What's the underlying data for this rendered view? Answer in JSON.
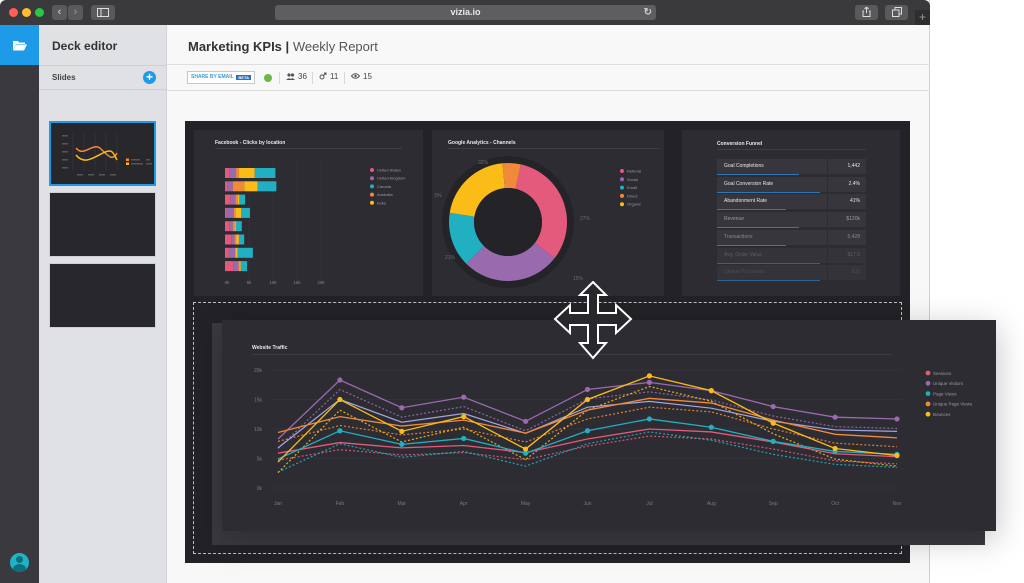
{
  "browser": {
    "url": "vizia.io",
    "traffic_lights": [
      "#ff5f57",
      "#febc2e",
      "#28c840"
    ]
  },
  "sidebar": {
    "app_title": "Deck editor",
    "section_label": "Slides",
    "add_icon": "plus-icon",
    "slides": [
      {
        "active": true
      },
      {
        "active": false
      },
      {
        "active": false
      }
    ]
  },
  "header": {
    "title": "Marketing KPIs",
    "separator": "|",
    "subtitle": "Weekly Report"
  },
  "toolbar": {
    "share_label": "SHARE BY EMAIL",
    "share_badge": "BETA",
    "status_color": "#6ab74a",
    "stats": [
      {
        "icon": "users-icon",
        "value": "36"
      },
      {
        "icon": "branch-icon",
        "value": "11"
      },
      {
        "icon": "eye-icon",
        "value": "15"
      }
    ]
  },
  "colors": {
    "pink": "#e45a7d",
    "purple": "#9a6aae",
    "teal": "#21b0c1",
    "orange": "#f08a3a",
    "yellow": "#fbbc17",
    "lavender": "#a0a6e0",
    "accent": "#1e9be8"
  },
  "chart_data": [
    {
      "type": "bar",
      "orientation": "horizontal",
      "stacked": true,
      "title": "Facebook - Clicks by location",
      "x_ticks": [
        "0k",
        "5k",
        "10k",
        "15k",
        "20k"
      ],
      "xlim": [
        0,
        20000
      ],
      "legend_position": "right",
      "series": [
        {
          "name": "United States",
          "color": "#e45a7d",
          "values": [
            1000,
            600,
            1200,
            300,
            900,
            1300,
            800,
            1700
          ]
        },
        {
          "name": "United Kingdom",
          "color": "#9a6aae",
          "values": [
            1300,
            1000,
            1000,
            1500,
            700,
            700,
            1300,
            1100
          ]
        },
        {
          "name": "Canada",
          "color": "#21b0c1",
          "values": [
            4300,
            3900,
            1200,
            1800,
            1200,
            1100,
            3200,
            1300
          ]
        },
        {
          "name": "Australia",
          "color": "#f08a3a",
          "values": [
            600,
            2400,
            500,
            400,
            500,
            400,
            100,
            200
          ]
        },
        {
          "name": "India",
          "color": "#fbbc17",
          "values": [
            3300,
            2800,
            300,
            1200,
            200,
            500,
            400,
            300
          ]
        }
      ]
    },
    {
      "type": "pie",
      "donut": true,
      "title": "Google Analytics - Channels",
      "legend_position": "right",
      "slices": [
        {
          "name": "Referral",
          "value": 32,
          "label": "32%",
          "color": "#e45a7d"
        },
        {
          "name": "Social",
          "value": 27,
          "label": "27%",
          "color": "#9a6aae"
        },
        {
          "name": "Email",
          "value": 15,
          "label": "15%",
          "color": "#21b0c1"
        },
        {
          "name": "Organic",
          "value": 21,
          "label": "21%",
          "color": "#fbbc17"
        },
        {
          "name": "Direct",
          "value": 5,
          "label": "5%",
          "color": "#f08a3a"
        }
      ],
      "legend": [
        "Referral",
        "Social",
        "Email",
        "Direct",
        "Organic"
      ]
    },
    {
      "type": "table",
      "title": "Conversion Funnel",
      "rows": [
        {
          "label": "Goal Completions",
          "value": "1,442",
          "fill": 0.55
        },
        {
          "label": "Goal Conversion Rate",
          "value": "2.4%",
          "fill": 0.69
        },
        {
          "label": "Abandonment Rate",
          "value": "41%",
          "fill": 0.46
        },
        {
          "label": "Revenue",
          "value": "$120k",
          "fill": 0.55
        },
        {
          "label": "Transactions",
          "value": "5,428",
          "fill": 0.46
        },
        {
          "label": "Avg. Order Value",
          "value": "$17.5",
          "fill": 0.69
        },
        {
          "label": "Unique Purchases",
          "value": "820",
          "fill": 0.69
        }
      ]
    },
    {
      "type": "line",
      "title": "Website Traffic",
      "categories": [
        "Jan",
        "Feb",
        "Mar",
        "Apr",
        "May",
        "Jun",
        "Jul",
        "Aug",
        "Sep",
        "Oct",
        "Nov"
      ],
      "y_ticks": [
        "0k",
        "5k",
        "10k",
        "15k",
        "20k"
      ],
      "ylim": [
        0,
        20000
      ],
      "grid": true,
      "legend_position": "right",
      "series": [
        {
          "name": "Sessions",
          "color": "#e45a7d",
          "values": [
            5900,
            7700,
            6800,
            7200,
            6000,
            8300,
            10000,
            9500,
            7800,
            5800,
            5300
          ]
        },
        {
          "name": "Unique Visitors",
          "color": "#9a6aae",
          "markers": true,
          "values": [
            8300,
            18300,
            13600,
            15400,
            11300,
            16700,
            17900,
            16500,
            13800,
            12000,
            11700
          ]
        },
        {
          "name": "Page Views",
          "color": "#21b0c1",
          "markers": true,
          "values": [
            4900,
            9700,
            7400,
            8400,
            5900,
            9700,
            11700,
            10300,
            7900,
            6200,
            5700
          ]
        },
        {
          "name": "Unique Page Views",
          "color": "#f08a3a",
          "values": [
            9400,
            12100,
            10500,
            11500,
            9300,
            13200,
            15200,
            14400,
            11500,
            9100,
            8500
          ]
        },
        {
          "name": "Bounces",
          "color": "#fbbc17",
          "markers": true,
          "values": [
            4400,
            15000,
            9600,
            12100,
            6600,
            15000,
            19000,
            16500,
            11000,
            6700,
            5500
          ]
        }
      ],
      "legend": [
        "Sessions",
        "Unique Visitors",
        "Page Views",
        "Unique Page Views",
        "Bounces"
      ]
    }
  ]
}
